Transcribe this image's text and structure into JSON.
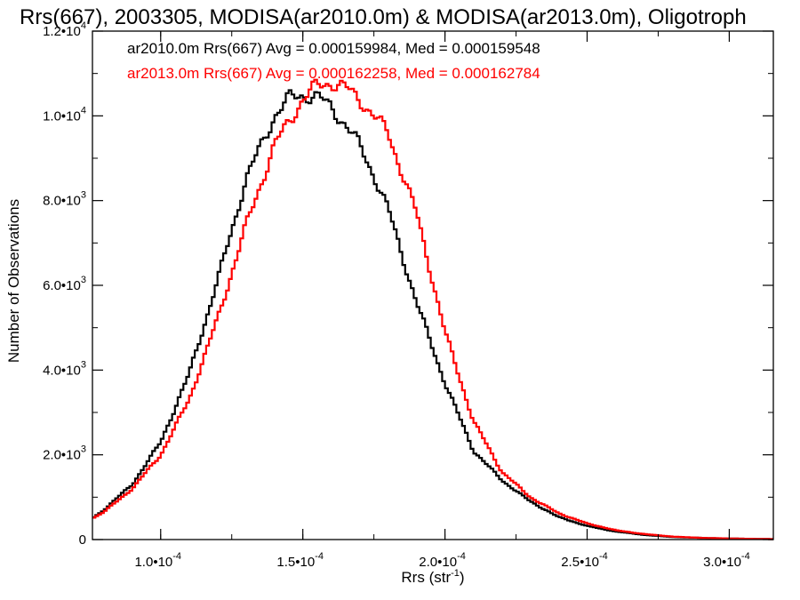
{
  "chart_data": {
    "type": "line",
    "step": true,
    "title": "Rrs(667), 2003305, MODISA(ar2010.0m) & MODISA(ar2013.0m), Oligotroph",
    "xlabel": "Rrs (str",
    "xlabel_sup": "-1",
    "xlabel_close": ")",
    "ylabel": "Number of Observations",
    "xlim": [
      7.6e-05,
      0.0003155
    ],
    "ylim": [
      0,
      12000
    ],
    "grid": false,
    "x_ticks": [
      {
        "value": 0.0001,
        "mant": "1.0•10",
        "exp": "-4"
      },
      {
        "value": 0.00015,
        "mant": "1.5•10",
        "exp": "-4"
      },
      {
        "value": 0.0002,
        "mant": "2.0•10",
        "exp": "-4"
      },
      {
        "value": 0.00025,
        "mant": "2.5•10",
        "exp": "-4"
      },
      {
        "value": 0.0003,
        "mant": "3.0•10",
        "exp": "-4"
      }
    ],
    "y_ticks": [
      {
        "value": 0,
        "mant": "0",
        "exp": ""
      },
      {
        "value": 2000,
        "mant": "2.0•10",
        "exp": "3"
      },
      {
        "value": 4000,
        "mant": "4.0•10",
        "exp": "3"
      },
      {
        "value": 6000,
        "mant": "6.0•10",
        "exp": "3"
      },
      {
        "value": 8000,
        "mant": "8.0•10",
        "exp": "3"
      },
      {
        "value": 10000,
        "mant": "1.0•10",
        "exp": "4"
      },
      {
        "value": 12000,
        "mant": "1.2•10",
        "exp": "4"
      }
    ],
    "legend_position": "top-left",
    "series": [
      {
        "name": "ar2010.0m",
        "color": "#000000",
        "label": "ar2010.0m Rrs(667) Avg = 0.000159984, Med = 0.000159548",
        "x": [
          7.6e-05,
          8e-05,
          9e-05,
          0.0001,
          0.00011,
          0.00012,
          0.00013,
          0.00014,
          0.000145,
          0.00015,
          0.000155,
          0.00016,
          0.000165,
          0.00017,
          0.000175,
          0.00018,
          0.00019,
          0.0002,
          0.00021,
          0.00022,
          0.00023,
          0.00024,
          0.00025,
          0.00026,
          0.00027,
          0.00028,
          0.00029,
          0.0003,
          0.00031,
          0.0003155
        ],
        "y": [
          500,
          700,
          1300,
          2300,
          3900,
          6100,
          8500,
          10000,
          10400,
          10500,
          10450,
          10200,
          9800,
          9300,
          8600,
          7800,
          5600,
          3700,
          2100,
          1400,
          900,
          530,
          320,
          190,
          110,
          60,
          40,
          25,
          15,
          10
        ]
      },
      {
        "name": "ar2013.0m",
        "color": "#ff0000",
        "label": "ar2013.0m Rrs(667) Avg = 0.000162258, Med = 0.000162784",
        "x": [
          7.6e-05,
          8e-05,
          9e-05,
          0.0001,
          0.00011,
          0.00012,
          0.00013,
          0.00014,
          0.00015,
          0.000155,
          0.00016,
          0.000165,
          0.00017,
          0.000175,
          0.00018,
          0.00019,
          0.0002,
          0.00021,
          0.00022,
          0.00023,
          0.00024,
          0.00025,
          0.00026,
          0.00027,
          0.00028,
          0.00029,
          0.0003,
          0.00031,
          0.0003155
        ],
        "y": [
          500,
          650,
          1200,
          2000,
          3300,
          5200,
          7400,
          9300,
          10400,
          10700,
          10800,
          10650,
          10400,
          10000,
          9600,
          7700,
          4900,
          2800,
          1600,
          1000,
          620,
          380,
          220,
          130,
          70,
          40,
          25,
          15,
          10
        ]
      }
    ]
  }
}
